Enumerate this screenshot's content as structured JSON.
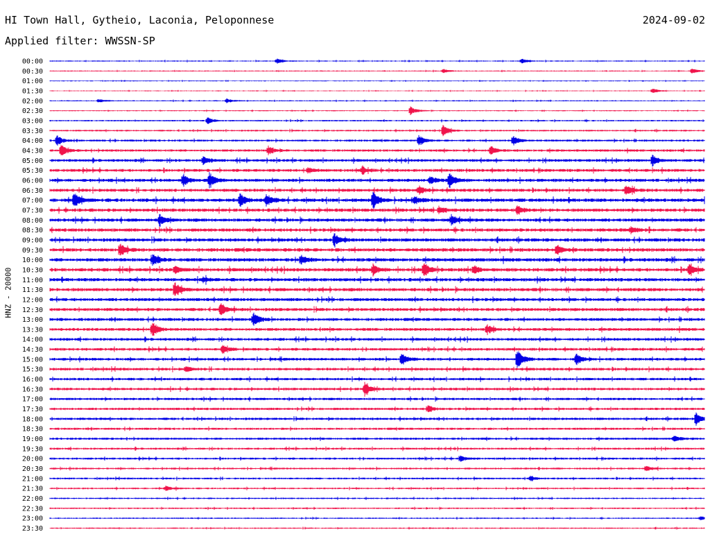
{
  "header": {
    "station": "HI Town Hall, Gytheio, Laconia, Peloponnese",
    "date": "2024-09-02",
    "filter": "Applied filter: WWSSN-SP",
    "channel": "HNZ - 20000"
  },
  "colors": {
    "trace_a": "#0000e6",
    "trace_b": "#f0144b"
  },
  "chart_data": {
    "type": "line",
    "title": "HI Town Hall, Gytheio, Laconia, Peloponnese",
    "ylabel": "HNZ - 20000",
    "x_unit": "minutes",
    "xlim": [
      0,
      30
    ],
    "row_labels": [
      "00:00",
      "00:30",
      "01:00",
      "01:30",
      "02:00",
      "02:30",
      "03:00",
      "03:30",
      "04:00",
      "04:30",
      "05:00",
      "05:30",
      "06:00",
      "06:30",
      "07:00",
      "07:30",
      "08:00",
      "08:30",
      "09:00",
      "09:30",
      "10:00",
      "10:30",
      "11:00",
      "11:30",
      "12:00",
      "12:30",
      "13:00",
      "13:30",
      "14:00",
      "14:30",
      "15:00",
      "15:30",
      "16:00",
      "16:30",
      "17:00",
      "17:30",
      "18:00",
      "18:30",
      "19:00",
      "19:30",
      "20:00",
      "20:30",
      "21:00",
      "21:30",
      "22:00",
      "22:30",
      "23:00",
      "23:30"
    ],
    "row_colors": [
      "blue",
      "red"
    ],
    "noise_level": [
      0.6,
      0.6,
      0.5,
      0.5,
      0.6,
      0.6,
      0.8,
      0.9,
      1.1,
      1.3,
      1.5,
      1.6,
      1.7,
      1.7,
      1.9,
      1.8,
      1.8,
      1.8,
      1.8,
      1.9,
      1.9,
      1.9,
      1.8,
      1.8,
      1.7,
      1.7,
      1.6,
      1.6,
      1.5,
      1.5,
      1.5,
      1.5,
      1.4,
      1.4,
      1.3,
      1.3,
      1.3,
      1.2,
      1.2,
      1.1,
      1.1,
      1.0,
      1.0,
      0.9,
      0.8,
      0.8,
      0.7,
      0.7
    ],
    "events": [
      {
        "row": 0,
        "minute": 10.4,
        "amp": 4
      },
      {
        "row": 0,
        "minute": 21.6,
        "amp": 4
      },
      {
        "row": 1,
        "minute": 18.0,
        "amp": 3
      },
      {
        "row": 1,
        "minute": 29.4,
        "amp": 4
      },
      {
        "row": 3,
        "minute": 27.6,
        "amp": 4
      },
      {
        "row": 4,
        "minute": 2.2,
        "amp": 3
      },
      {
        "row": 4,
        "minute": 8.1,
        "amp": 3
      },
      {
        "row": 5,
        "minute": 16.5,
        "amp": 7
      },
      {
        "row": 6,
        "minute": 7.2,
        "amp": 5
      },
      {
        "row": 7,
        "minute": 18.0,
        "amp": 9
      },
      {
        "row": 8,
        "minute": 0.3,
        "amp": 8
      },
      {
        "row": 8,
        "minute": 16.9,
        "amp": 8
      },
      {
        "row": 8,
        "minute": 21.2,
        "amp": 8
      },
      {
        "row": 9,
        "minute": 0.5,
        "amp": 9
      },
      {
        "row": 9,
        "minute": 10.0,
        "amp": 6
      },
      {
        "row": 9,
        "minute": 20.2,
        "amp": 6
      },
      {
        "row": 10,
        "minute": 7.0,
        "amp": 6
      },
      {
        "row": 10,
        "minute": 27.6,
        "amp": 8
      },
      {
        "row": 11,
        "minute": 14.3,
        "amp": 5
      },
      {
        "row": 11,
        "minute": 11.8,
        "amp": 4
      },
      {
        "row": 12,
        "minute": 6.1,
        "amp": 8
      },
      {
        "row": 12,
        "minute": 7.3,
        "amp": 11
      },
      {
        "row": 12,
        "minute": 17.4,
        "amp": 6
      },
      {
        "row": 12,
        "minute": 18.3,
        "amp": 11
      },
      {
        "row": 13,
        "minute": 16.9,
        "amp": 6
      },
      {
        "row": 13,
        "minute": 26.4,
        "amp": 8
      },
      {
        "row": 14,
        "minute": 1.1,
        "amp": 13
      },
      {
        "row": 14,
        "minute": 8.7,
        "amp": 10
      },
      {
        "row": 14,
        "minute": 9.9,
        "amp": 10
      },
      {
        "row": 14,
        "minute": 14.8,
        "amp": 12
      },
      {
        "row": 14,
        "minute": 16.7,
        "amp": 5
      },
      {
        "row": 15,
        "minute": 17.8,
        "amp": 6
      },
      {
        "row": 15,
        "minute": 21.4,
        "amp": 7
      },
      {
        "row": 16,
        "minute": 5.0,
        "amp": 7
      },
      {
        "row": 16,
        "minute": 18.4,
        "amp": 7
      },
      {
        "row": 17,
        "minute": 26.6,
        "amp": 6
      },
      {
        "row": 18,
        "minute": 13.0,
        "amp": 10
      },
      {
        "row": 19,
        "minute": 3.2,
        "amp": 9
      },
      {
        "row": 19,
        "minute": 23.2,
        "amp": 8
      },
      {
        "row": 20,
        "minute": 4.7,
        "amp": 9
      },
      {
        "row": 20,
        "minute": 11.5,
        "amp": 7
      },
      {
        "row": 21,
        "minute": 5.7,
        "amp": 6
      },
      {
        "row": 21,
        "minute": 14.8,
        "amp": 8
      },
      {
        "row": 21,
        "minute": 17.1,
        "amp": 12
      },
      {
        "row": 21,
        "minute": 19.4,
        "amp": 6
      },
      {
        "row": 21,
        "minute": 29.3,
        "amp": 8
      },
      {
        "row": 22,
        "minute": 7.0,
        "amp": 4
      },
      {
        "row": 23,
        "minute": 5.7,
        "amp": 11
      },
      {
        "row": 25,
        "minute": 7.8,
        "amp": 9
      },
      {
        "row": 26,
        "minute": 9.3,
        "amp": 11
      },
      {
        "row": 27,
        "minute": 4.7,
        "amp": 11
      },
      {
        "row": 27,
        "minute": 20.0,
        "amp": 7
      },
      {
        "row": 29,
        "minute": 7.9,
        "amp": 6
      },
      {
        "row": 30,
        "minute": 16.1,
        "amp": 8
      },
      {
        "row": 30,
        "minute": 21.4,
        "amp": 16
      },
      {
        "row": 30,
        "minute": 24.1,
        "amp": 9
      },
      {
        "row": 31,
        "minute": 6.2,
        "amp": 4
      },
      {
        "row": 33,
        "minute": 14.4,
        "amp": 10
      },
      {
        "row": 35,
        "minute": 17.3,
        "amp": 6
      },
      {
        "row": 36,
        "minute": 29.6,
        "amp": 10
      },
      {
        "row": 38,
        "minute": 28.6,
        "amp": 4
      },
      {
        "row": 40,
        "minute": 18.8,
        "amp": 4
      },
      {
        "row": 41,
        "minute": 27.3,
        "amp": 4
      },
      {
        "row": 42,
        "minute": 22.0,
        "amp": 4
      },
      {
        "row": 43,
        "minute": 5.3,
        "amp": 4
      },
      {
        "row": 46,
        "minute": 29.8,
        "amp": 3
      }
    ]
  }
}
